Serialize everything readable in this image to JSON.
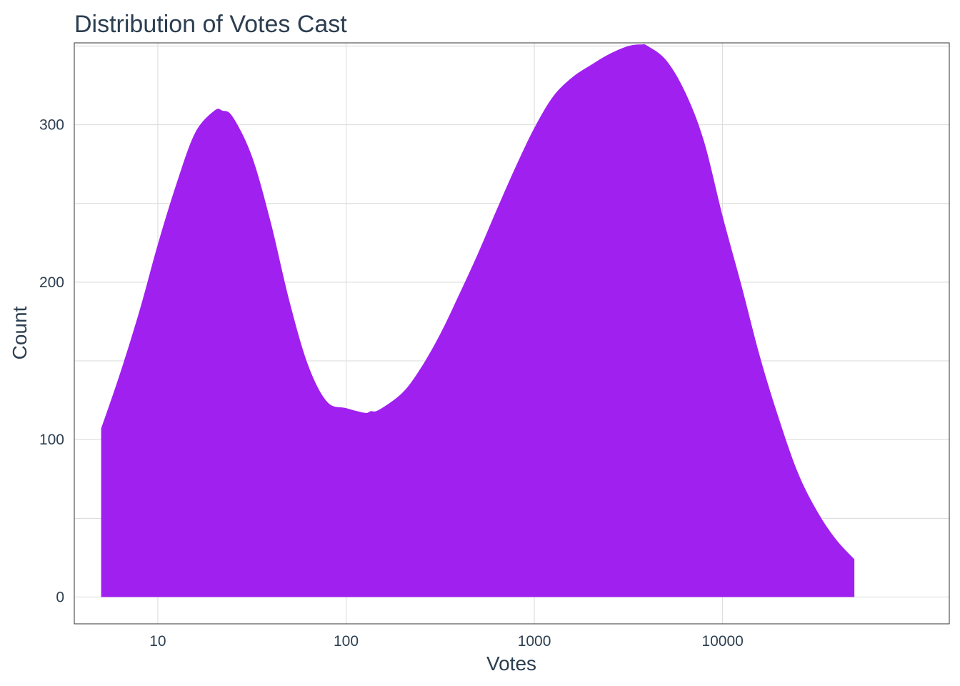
{
  "chart_data": {
    "type": "area",
    "title": "Distribution of Votes Cast",
    "xlabel": "Votes",
    "ylabel": "Count",
    "x_scale": "log10",
    "xlim": [
      3.6,
      160000
    ],
    "ylim": [
      -17,
      352
    ],
    "x_ticks": [
      10,
      100,
      1000,
      10000
    ],
    "x_tick_labels": [
      "10",
      "100",
      "1000",
      "10000"
    ],
    "y_ticks": [
      0,
      100,
      200,
      300
    ],
    "y_tick_labels": [
      "0",
      "100",
      "200",
      "300"
    ],
    "grid": true,
    "fill_color": "#a020f0",
    "x": [
      5,
      6.3,
      8,
      10,
      12.6,
      15.8,
      20,
      22,
      25,
      31.6,
      39.8,
      50,
      63,
      79.4,
      100,
      126,
      135,
      150,
      200,
      251,
      316,
      398,
      501,
      631,
      794,
      1000,
      1259,
      1585,
      2000,
      2512,
      3162,
      3700,
      4000,
      5012,
      6310,
      7943,
      10000,
      12589,
      15849,
      19953,
      25119,
      31623,
      39811,
      50119
    ],
    "values": [
      107,
      142,
      182,
      224,
      263,
      295,
      309,
      309,
      305,
      280,
      238,
      188,
      147,
      124,
      120,
      117,
      118,
      119,
      130,
      146,
      167,
      192,
      218,
      246,
      273,
      298,
      318,
      330,
      338,
      345,
      350,
      351,
      350,
      341,
      321,
      290,
      242,
      198,
      152,
      113,
      79,
      55,
      37,
      24
    ]
  }
}
